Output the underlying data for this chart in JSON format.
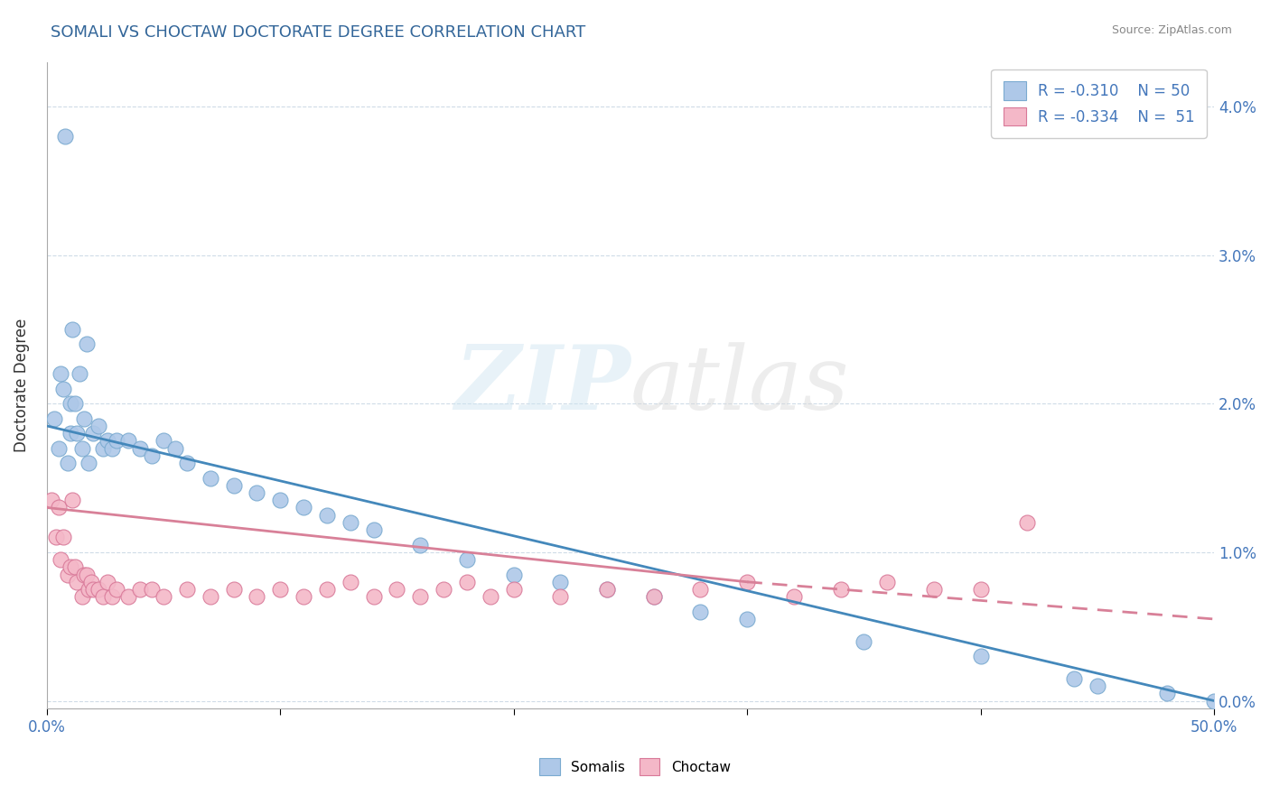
{
  "title": "SOMALI VS CHOCTAW DOCTORATE DEGREE CORRELATION CHART",
  "source": "Source: ZipAtlas.com",
  "ylabel": "Doctorate Degree",
  "right_ytick_vals": [
    0.0,
    1.0,
    2.0,
    3.0,
    4.0
  ],
  "xlim": [
    0.0,
    50.0
  ],
  "ylim": [
    -0.05,
    4.3
  ],
  "somali_color": "#aec8e8",
  "somali_edge": "#7aaad0",
  "choctaw_color": "#f4b8c8",
  "choctaw_edge": "#d87898",
  "somali_line_color": "#4488bb",
  "choctaw_line_color": "#d88098",
  "watermark_zip": "ZIP",
  "watermark_atlas": "atlas",
  "somali_x": [
    0.3,
    0.5,
    0.6,
    0.7,
    0.8,
    0.9,
    1.0,
    1.0,
    1.1,
    1.2,
    1.3,
    1.4,
    1.5,
    1.6,
    1.7,
    1.8,
    2.0,
    2.2,
    2.4,
    2.6,
    2.8,
    3.0,
    3.5,
    4.0,
    4.5,
    5.0,
    5.5,
    6.0,
    7.0,
    8.0,
    9.0,
    10.0,
    11.0,
    12.0,
    13.0,
    14.0,
    16.0,
    18.0,
    20.0,
    22.0,
    24.0,
    26.0,
    28.0,
    30.0,
    35.0,
    40.0,
    44.0,
    45.0,
    48.0,
    50.0
  ],
  "somali_y": [
    1.9,
    1.7,
    2.2,
    2.1,
    3.8,
    1.6,
    2.0,
    1.8,
    2.5,
    2.0,
    1.8,
    2.2,
    1.7,
    1.9,
    2.4,
    1.6,
    1.8,
    1.85,
    1.7,
    1.75,
    1.7,
    1.75,
    1.75,
    1.7,
    1.65,
    1.75,
    1.7,
    1.6,
    1.5,
    1.45,
    1.4,
    1.35,
    1.3,
    1.25,
    1.2,
    1.15,
    1.05,
    0.95,
    0.85,
    0.8,
    0.75,
    0.7,
    0.6,
    0.55,
    0.4,
    0.3,
    0.15,
    0.1,
    0.05,
    0.0
  ],
  "choctaw_x": [
    0.2,
    0.4,
    0.5,
    0.6,
    0.7,
    0.9,
    1.0,
    1.1,
    1.2,
    1.3,
    1.5,
    1.6,
    1.7,
    1.8,
    1.9,
    2.0,
    2.2,
    2.4,
    2.6,
    2.8,
    3.0,
    3.5,
    4.0,
    4.5,
    5.0,
    6.0,
    7.0,
    8.0,
    9.0,
    10.0,
    11.0,
    12.0,
    13.0,
    14.0,
    15.0,
    16.0,
    17.0,
    18.0,
    19.0,
    20.0,
    22.0,
    24.0,
    26.0,
    28.0,
    30.0,
    32.0,
    34.0,
    36.0,
    38.0,
    40.0,
    42.0
  ],
  "choctaw_y": [
    1.35,
    1.1,
    1.3,
    0.95,
    1.1,
    0.85,
    0.9,
    1.35,
    0.9,
    0.8,
    0.7,
    0.85,
    0.85,
    0.75,
    0.8,
    0.75,
    0.75,
    0.7,
    0.8,
    0.7,
    0.75,
    0.7,
    0.75,
    0.75,
    0.7,
    0.75,
    0.7,
    0.75,
    0.7,
    0.75,
    0.7,
    0.75,
    0.8,
    0.7,
    0.75,
    0.7,
    0.75,
    0.8,
    0.7,
    0.75,
    0.7,
    0.75,
    0.7,
    0.75,
    0.8,
    0.7,
    0.75,
    0.8,
    0.75,
    0.75,
    1.2
  ],
  "somali_line_x0": 0.0,
  "somali_line_y0": 1.85,
  "somali_line_x1": 50.0,
  "somali_line_y1": 0.0,
  "choctaw_solid_x0": 0.0,
  "choctaw_solid_y0": 1.3,
  "choctaw_solid_x1": 30.0,
  "choctaw_solid_y1": 0.8,
  "choctaw_dash_x0": 30.0,
  "choctaw_dash_y0": 0.8,
  "choctaw_dash_x1": 50.0,
  "choctaw_dash_y1": 0.55
}
